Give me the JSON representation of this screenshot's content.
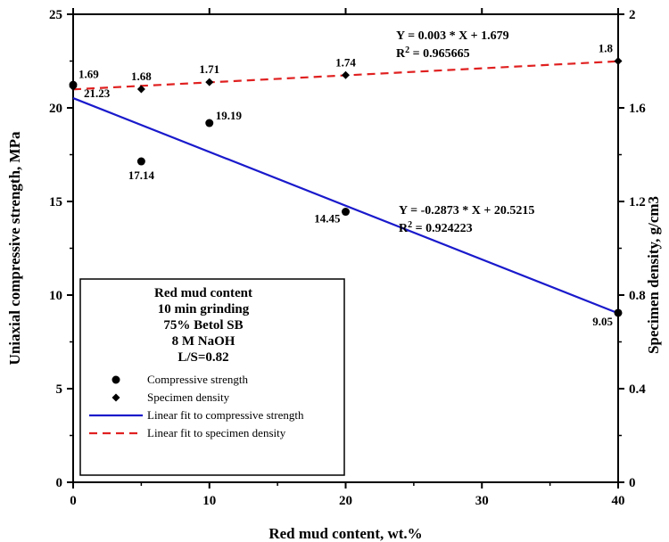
{
  "chart_data": {
    "type": "scatter",
    "xlabel": "Red mud content, wt.%",
    "ylabel": "Uniaxial compressive strength, MPa",
    "y2label": "Specimen density, g/cm3",
    "xlim": [
      0,
      40
    ],
    "ylim": [
      0,
      25
    ],
    "y2lim": [
      0,
      2
    ],
    "xticks": [
      "0",
      "10",
      "20",
      "30",
      "40"
    ],
    "yticks": [
      "0",
      "5",
      "10",
      "15",
      "20",
      "25"
    ],
    "y2ticks": [
      "0",
      "0.4",
      "0.8",
      "1.2",
      "1.6",
      "2"
    ],
    "series": [
      {
        "name": "Compressive strength",
        "axis": "left",
        "marker": "circle",
        "x": [
          0,
          5,
          10,
          20,
          40
        ],
        "y": [
          21.23,
          17.14,
          19.19,
          14.45,
          9.05
        ],
        "labels": [
          "21.23",
          "17.14",
          "19.19",
          "14.45",
          "9.05"
        ]
      },
      {
        "name": "Specimen density",
        "axis": "right",
        "marker": "diamond",
        "x": [
          0,
          5,
          10,
          20,
          40
        ],
        "y": [
          1.69,
          1.68,
          1.71,
          1.74,
          1.8
        ],
        "labels": [
          "1.69",
          "1.68",
          "1.71",
          "1.74",
          "1.8"
        ]
      }
    ],
    "fits": [
      {
        "name": "Linear fit to compressive strength",
        "axis": "left",
        "slope": -0.2873,
        "intercept": 20.5215,
        "color": "#1a1acc",
        "dash": "solid",
        "equation": "Y = -0.2873 * X + 20.5215",
        "r2_prefix": "R",
        "r2_sup": "2",
        "r2_value": " = 0.924223"
      },
      {
        "name": "Linear fit to specimen density",
        "axis": "right",
        "slope": 0.003,
        "intercept": 1.679,
        "color": "#e02020",
        "dash": "dashed",
        "equation": "Y = 0.003 * X + 1.679",
        "r2_prefix": "R",
        "r2_sup": "2",
        "r2_value": " = 0.965665"
      }
    ],
    "legend": {
      "placement": "bottom-left",
      "title_lines": [
        "Red mud content",
        "10 min grinding",
        "75% Betol SB",
        "8 M NaOH",
        "L/S=0.82"
      ],
      "entries": [
        "Compressive strength",
        "Specimen density",
        "Linear fit to compressive strength",
        "Linear fit to specimen density"
      ]
    },
    "grid": false
  }
}
